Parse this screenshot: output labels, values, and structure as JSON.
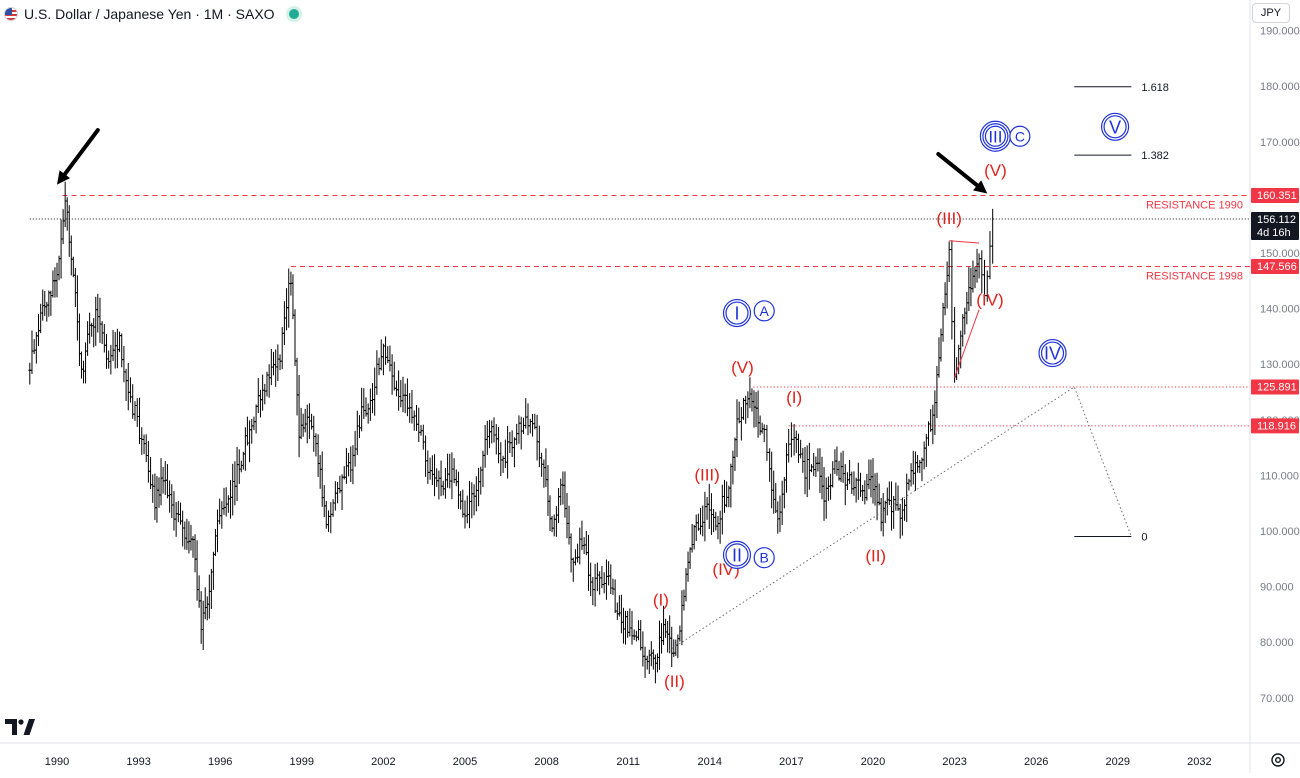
{
  "header": {
    "title": "U.S. Dollar / Japanese Yen · 1M · SAXO",
    "flag_icon": "usd-jpy-flag-icon",
    "status_icon": "market-open-dot-icon"
  },
  "currency_button": "JPY",
  "colors": {
    "candle": "#000000",
    "resistance": "#f23645",
    "wave_red": "#e0221c",
    "wave_blue": "#1f33d6",
    "price_tag": "#f23645",
    "current_tag": "#131722",
    "grid_text": "#787b86"
  },
  "chart_data": {
    "type": "ohlc",
    "symbol": "U.S. Dollar / Japanese Yen",
    "interval": "1M",
    "source": "SAXO",
    "x_axis": {
      "tick_labels": [
        "1990",
        "1993",
        "1996",
        "1999",
        "2002",
        "2005",
        "2008",
        "2011",
        "2014",
        "2017",
        "2020",
        "2023",
        "2026",
        "2029",
        "2032"
      ]
    },
    "y_axis": {
      "tick_labels": [
        "190.000",
        "180.000",
        "170.000",
        "160.000",
        "150.000",
        "140.000",
        "130.000",
        "120.000",
        "110.000",
        "100.000",
        "90.000",
        "80.000",
        "70.000"
      ],
      "range": [
        64,
        193
      ],
      "position": "right"
    },
    "price_path": [
      [
        1989.0,
        130
      ],
      [
        1989.4,
        138
      ],
      [
        1989.7,
        143
      ],
      [
        1990.0,
        146
      ],
      [
        1990.3,
        160
      ],
      [
        1990.6,
        147
      ],
      [
        1990.9,
        128
      ],
      [
        1991.2,
        137
      ],
      [
        1991.5,
        139
      ],
      [
        1991.9,
        130
      ],
      [
        1992.3,
        134
      ],
      [
        1992.7,
        124
      ],
      [
        1993.2,
        115
      ],
      [
        1993.6,
        105
      ],
      [
        1993.9,
        110
      ],
      [
        1994.3,
        103
      ],
      [
        1994.7,
        99
      ],
      [
        1995.0,
        100
      ],
      [
        1995.3,
        82
      ],
      [
        1995.6,
        90
      ],
      [
        1995.9,
        101
      ],
      [
        1996.3,
        106
      ],
      [
        1996.7,
        112
      ],
      [
        1997.0,
        117
      ],
      [
        1997.4,
        124
      ],
      [
        1997.8,
        128
      ],
      [
        1998.2,
        132
      ],
      [
        1998.6,
        146
      ],
      [
        1998.9,
        118
      ],
      [
        1999.2,
        120
      ],
      [
        1999.6,
        113
      ],
      [
        1999.9,
        102
      ],
      [
        2000.4,
        108
      ],
      [
        2000.8,
        112
      ],
      [
        2001.2,
        121
      ],
      [
        2001.6,
        125
      ],
      [
        2002.0,
        134
      ],
      [
        2002.4,
        125
      ],
      [
        2002.8,
        123
      ],
      [
        2003.3,
        118
      ],
      [
        2003.8,
        109
      ],
      [
        2004.2,
        108
      ],
      [
        2004.6,
        110
      ],
      [
        2005.0,
        103
      ],
      [
        2005.5,
        110
      ],
      [
        2005.9,
        119
      ],
      [
        2006.4,
        113
      ],
      [
        2006.9,
        118
      ],
      [
        2007.4,
        121
      ],
      [
        2007.9,
        111
      ],
      [
        2008.2,
        100
      ],
      [
        2008.6,
        109
      ],
      [
        2008.9,
        94
      ],
      [
        2009.3,
        98
      ],
      [
        2009.7,
        90
      ],
      [
        2010.2,
        92
      ],
      [
        2010.6,
        86
      ],
      [
        2010.9,
        83
      ],
      [
        2011.3,
        82
      ],
      [
        2011.7,
        77
      ],
      [
        2012.0,
        77
      ],
      [
        2012.3,
        83
      ],
      [
        2012.6,
        78
      ],
      [
        2012.9,
        82
      ],
      [
        2013.2,
        95
      ],
      [
        2013.5,
        101
      ],
      [
        2013.9,
        104
      ],
      [
        2014.3,
        102
      ],
      [
        2014.7,
        109
      ],
      [
        2015.0,
        120
      ],
      [
        2015.4,
        124
      ],
      [
        2015.7,
        121
      ],
      [
        2016.0,
        118
      ],
      [
        2016.2,
        110
      ],
      [
        2016.5,
        101
      ],
      [
        2016.9,
        115
      ],
      [
        2017.1,
        117
      ],
      [
        2017.5,
        111
      ],
      [
        2017.9,
        113
      ],
      [
        2018.2,
        106
      ],
      [
        2018.6,
        112
      ],
      [
        2018.9,
        110
      ],
      [
        2019.3,
        108
      ],
      [
        2019.7,
        107
      ],
      [
        2020.0,
        109
      ],
      [
        2020.3,
        103
      ],
      [
        2020.6,
        105
      ],
      [
        2021.0,
        103
      ],
      [
        2021.4,
        110
      ],
      [
        2021.8,
        113
      ],
      [
        2022.2,
        121
      ],
      [
        2022.5,
        135
      ],
      [
        2022.8,
        150
      ],
      [
        2023.0,
        128
      ],
      [
        2023.3,
        137
      ],
      [
        2023.6,
        145
      ],
      [
        2023.9,
        148
      ],
      [
        2024.1,
        141
      ],
      [
        2024.3,
        152
      ],
      [
        2024.4,
        156.112
      ]
    ],
    "horizontal_levels": [
      {
        "name": "resistance-1990",
        "value": 160.351,
        "style": "dashed",
        "label": "RESISTANCE 1990",
        "tag": "160.351",
        "from_x": 1990.2
      },
      {
        "name": "resistance-1998",
        "value": 147.566,
        "style": "dashed",
        "label": "RESISTANCE 1998",
        "tag": "147.566",
        "from_x": 1998.6
      },
      {
        "name": "level-125",
        "value": 125.891,
        "style": "dotted",
        "label": "",
        "tag": "125.891",
        "from_x": 2015.6
      },
      {
        "name": "level-118",
        "value": 118.916,
        "style": "dotted",
        "label": "",
        "tag": "118.916",
        "from_x": 2016.9
      },
      {
        "name": "current-price",
        "value": 156.112,
        "style": "dotted-dark",
        "label": "",
        "tag": "156.112",
        "sub_tag": "4d 16h",
        "from_x": 1989.0
      }
    ],
    "fib_projection": {
      "levels": [
        {
          "label": "1.618",
          "value": 179.9,
          "x_from": 2027.4,
          "x_to": 2029.5
        },
        {
          "label": "1.382",
          "value": 167.6,
          "x_from": 2027.4,
          "x_to": 2029.5
        },
        {
          "label": "0",
          "value": 99.0,
          "x_from": 2027.4,
          "x_to": 2029.5
        }
      ],
      "path": [
        [
          2012.5,
          78.5
        ],
        [
          2027.4,
          125.891
        ],
        [
          2029.5,
          99.0
        ]
      ]
    },
    "triangle_lines": [
      {
        "name": "wave-iv-upper",
        "points": [
          [
            2022.8,
            152.2
          ],
          [
            2023.9,
            151.8
          ]
        ]
      },
      {
        "name": "wave-iv-lower",
        "points": [
          [
            2023.0,
            127.6
          ],
          [
            2023.9,
            139.8
          ]
        ]
      }
    ],
    "wave_labels_red": [
      {
        "text": "(I)",
        "x": 2012.2,
        "y": 87.7
      },
      {
        "text": "(II)",
        "x": 2012.7,
        "y": 73.0
      },
      {
        "text": "(III)",
        "x": 2013.9,
        "y": 110.2
      },
      {
        "text": "(IV)",
        "x": 2014.6,
        "y": 93.2
      },
      {
        "text": "(V)",
        "x": 2015.2,
        "y": 129.5
      },
      {
        "text": "(I)",
        "x": 2017.1,
        "y": 124.1
      },
      {
        "text": "(II)",
        "x": 2020.1,
        "y": 95.6
      },
      {
        "text": "(III)",
        "x": 2022.8,
        "y": 156.3
      },
      {
        "text": "(IV)",
        "x": 2024.3,
        "y": 141.6
      },
      {
        "text": "(V)",
        "x": 2024.5,
        "y": 164.9
      }
    ],
    "wave_labels_blue": [
      {
        "text": "I",
        "x": 2015.0,
        "y": 139.2,
        "circle": "double"
      },
      {
        "text": "A",
        "x": 2016.0,
        "y": 139.6,
        "circle": "single"
      },
      {
        "text": "II",
        "x": 2015.0,
        "y": 95.7,
        "circle": "double"
      },
      {
        "text": "B",
        "x": 2016.0,
        "y": 95.2,
        "circle": "single"
      },
      {
        "text": "III",
        "x": 2024.5,
        "y": 171.0,
        "circle": "triple"
      },
      {
        "text": "C",
        "x": 2025.4,
        "y": 171.0,
        "circle": "single"
      },
      {
        "text": "IV",
        "x": 2026.6,
        "y": 132.0,
        "circle": "double"
      },
      {
        "text": "V",
        "x": 2028.9,
        "y": 172.7,
        "circle": "double"
      }
    ],
    "arrows": [
      {
        "name": "arrow-1990-top",
        "from": [
          1991.5,
          172.1
        ],
        "to": [
          1990.0,
          162.3
        ]
      },
      {
        "name": "arrow-2024-top",
        "from": [
          2022.4,
          167.8
        ],
        "to": [
          2024.2,
          160.7
        ]
      }
    ]
  }
}
